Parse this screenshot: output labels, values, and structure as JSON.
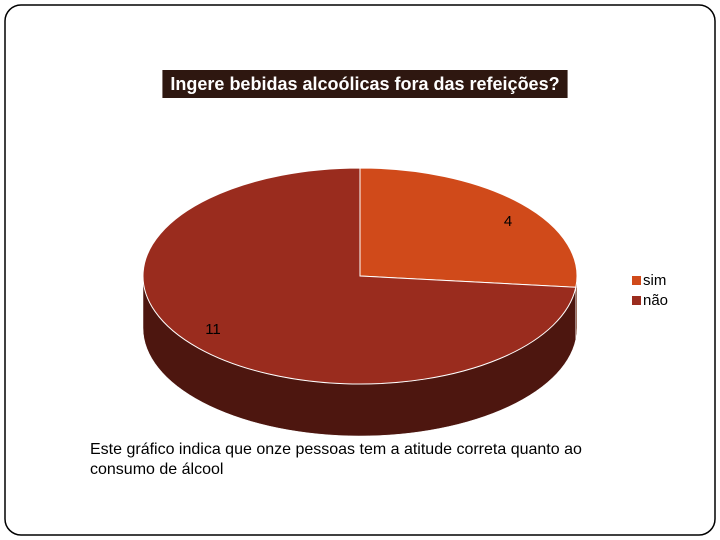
{
  "chart_data": {
    "type": "pie",
    "title": "Ingere bebidas alcoólicas fora das refeições?",
    "categories": [
      "sim",
      "não"
    ],
    "values": [
      4,
      11
    ],
    "colors": [
      "#d04a1a",
      "#9a2c1e"
    ],
    "legend": "right",
    "note": "Este gráfico indica que onze pessoas tem a atitude correta quanto ao consumo de álcool"
  }
}
